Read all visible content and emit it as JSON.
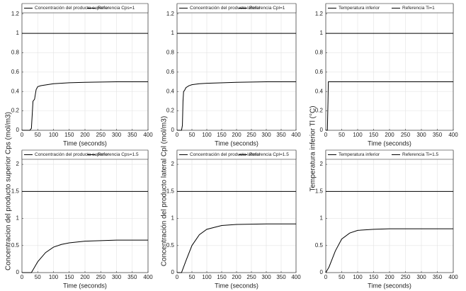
{
  "chart_data": [
    {
      "type": "line",
      "xlabel": "Time (seconds)",
      "xlim": [
        0,
        400
      ],
      "ylim": [
        0,
        1.3
      ],
      "grid": true,
      "legend": "top",
      "xticks": [
        0,
        50,
        100,
        150,
        200,
        250,
        300,
        350,
        400
      ],
      "yticks": [
        0,
        0.2,
        0.4,
        0.6,
        0.8,
        1,
        1.2
      ],
      "x": [
        0,
        25,
        30,
        35,
        40,
        45,
        50,
        60,
        80,
        100,
        150,
        200,
        300,
        400
      ],
      "series": [
        {
          "name": "Concentración del producto superior",
          "color": "#000000",
          "values": [
            0,
            0,
            0.02,
            0.3,
            0.32,
            0.42,
            0.45,
            0.46,
            0.47,
            0.48,
            0.49,
            0.495,
            0.5,
            0.5
          ]
        },
        {
          "name": "Referencia Cps=1",
          "color": "#000000",
          "values": [
            1,
            1,
            1,
            1,
            1,
            1,
            1,
            1,
            1,
            1,
            1,
            1,
            1,
            1
          ]
        }
      ]
    },
    {
      "type": "line",
      "xlabel": "Time (seconds)",
      "xlim": [
        0,
        400
      ],
      "ylim": [
        0,
        1.3
      ],
      "grid": true,
      "legend": "top",
      "xticks": [
        0,
        50,
        100,
        150,
        200,
        250,
        300,
        350,
        400
      ],
      "yticks": [
        0,
        0.2,
        0.4,
        0.6,
        0.8,
        1,
        1.2
      ],
      "x": [
        0,
        15,
        18,
        20,
        22,
        25,
        30,
        40,
        50,
        75,
        100,
        200,
        300,
        400
      ],
      "series": [
        {
          "name": "Concentración del producto lateral",
          "color": "#000000",
          "values": [
            0,
            0,
            0.05,
            0.3,
            0.4,
            0.41,
            0.44,
            0.46,
            0.47,
            0.48,
            0.485,
            0.495,
            0.5,
            0.5
          ]
        },
        {
          "name": "Referencia Cpl=1",
          "color": "#000000",
          "values": [
            1,
            1,
            1,
            1,
            1,
            1,
            1,
            1,
            1,
            1,
            1,
            1,
            1,
            1
          ]
        }
      ]
    },
    {
      "type": "line",
      "xlabel": "Time (seconds)",
      "xlim": [
        0,
        400
      ],
      "ylim": [
        0,
        1.3
      ],
      "grid": true,
      "legend": "top",
      "xticks": [
        0,
        50,
        100,
        150,
        200,
        250,
        300,
        350,
        400
      ],
      "yticks": [
        0,
        0.2,
        0.4,
        0.6,
        0.8,
        1,
        1.2
      ],
      "x": [
        0,
        5,
        7,
        8,
        10,
        50,
        100,
        200,
        300,
        400
      ],
      "series": [
        {
          "name": "Temperatura inferior",
          "color": "#000000",
          "values": [
            0,
            0,
            0.3,
            0.5,
            0.5,
            0.5,
            0.5,
            0.5,
            0.5,
            0.5
          ]
        },
        {
          "name": "Referencia Ti=1",
          "color": "#000000",
          "values": [
            1,
            1,
            1,
            1,
            1,
            1,
            1,
            1,
            1,
            1
          ]
        }
      ]
    },
    {
      "type": "line",
      "xlabel": "Time (seconds)",
      "ylabel": "Concentracion del producto superior Cps (mol/m3)",
      "xlim": [
        0,
        400
      ],
      "ylim": [
        0,
        2.25
      ],
      "grid": true,
      "legend": "top",
      "xticks": [
        0,
        50,
        100,
        150,
        200,
        250,
        300,
        350,
        400
      ],
      "yticks": [
        0,
        0.5,
        1,
        1.5,
        2
      ],
      "x": [
        0,
        30,
        40,
        50,
        75,
        100,
        125,
        150,
        200,
        250,
        300,
        400
      ],
      "series": [
        {
          "name": "Concentración del producto superior",
          "color": "#000000",
          "values": [
            0,
            0,
            0.1,
            0.2,
            0.37,
            0.47,
            0.52,
            0.55,
            0.58,
            0.59,
            0.6,
            0.6
          ]
        },
        {
          "name": "Referencia Cps=1.5",
          "color": "#000000",
          "values": [
            1.5,
            1.5,
            1.5,
            1.5,
            1.5,
            1.5,
            1.5,
            1.5,
            1.5,
            1.5,
            1.5,
            1.5
          ]
        }
      ]
    },
    {
      "type": "line",
      "xlabel": "Time (seconds)",
      "ylabel": "Concentración del producto lateral Cpl (mol/m3)",
      "xlim": [
        0,
        400
      ],
      "ylim": [
        0,
        2.25
      ],
      "grid": true,
      "legend": "top",
      "xticks": [
        0,
        50,
        100,
        150,
        200,
        250,
        300,
        350,
        400
      ],
      "yticks": [
        0,
        0.5,
        1,
        1.5,
        2
      ],
      "x": [
        0,
        15,
        30,
        50,
        75,
        100,
        150,
        200,
        300,
        400
      ],
      "series": [
        {
          "name": "Concentración del producto lateral",
          "color": "#000000",
          "values": [
            0,
            0,
            0.22,
            0.5,
            0.7,
            0.8,
            0.87,
            0.89,
            0.9,
            0.9
          ]
        },
        {
          "name": "Referencia Cpl=1.5",
          "color": "#000000",
          "values": [
            1.5,
            1.5,
            1.5,
            1.5,
            1.5,
            1.5,
            1.5,
            1.5,
            1.5,
            1.5
          ]
        }
      ]
    },
    {
      "type": "line",
      "xlabel": "Time (seconds)",
      "ylabel": "Temperatura inferior Tl (°C)",
      "xlim": [
        0,
        400
      ],
      "ylim": [
        0,
        2.25
      ],
      "grid": true,
      "legend": "top",
      "xticks": [
        0,
        50,
        100,
        150,
        200,
        250,
        300,
        350,
        400
      ],
      "yticks": [
        0,
        0.5,
        1,
        1.5,
        2
      ],
      "x": [
        0,
        10,
        20,
        30,
        50,
        75,
        100,
        150,
        200,
        400
      ],
      "series": [
        {
          "name": "Temperatura inferior",
          "color": "#000000",
          "values": [
            0,
            0.1,
            0.25,
            0.4,
            0.62,
            0.73,
            0.78,
            0.8,
            0.81,
            0.81
          ]
        },
        {
          "name": "Referencia Ti=1.5",
          "color": "#000000",
          "values": [
            1.5,
            1.5,
            1.5,
            1.5,
            1.5,
            1.5,
            1.5,
            1.5,
            1.5,
            1.5
          ]
        }
      ]
    }
  ]
}
